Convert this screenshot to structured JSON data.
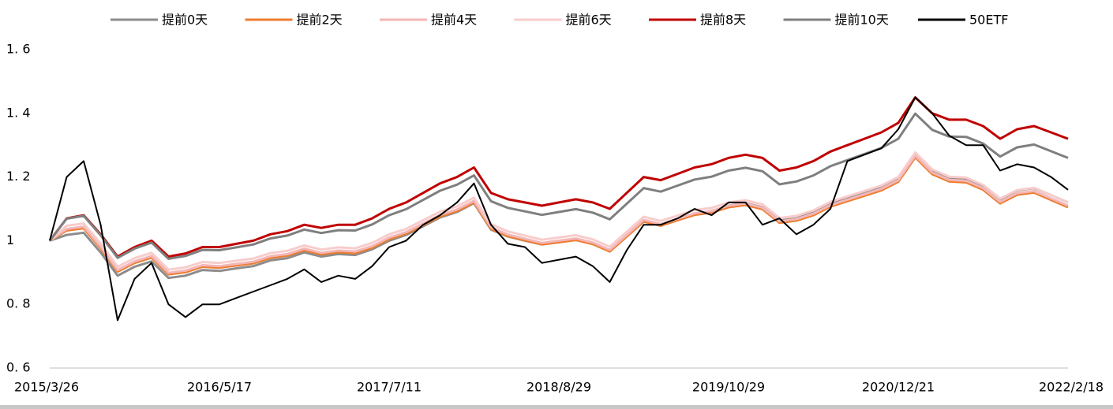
{
  "chart_data": {
    "type": "line",
    "categories": [
      "2015/3/26",
      null,
      null,
      null,
      null,
      null,
      null,
      null,
      null,
      null,
      "2016/5/17",
      null,
      null,
      null,
      null,
      null,
      null,
      null,
      null,
      null,
      "2017/7/11",
      null,
      null,
      null,
      null,
      null,
      null,
      null,
      null,
      null,
      "2018/8/29",
      null,
      null,
      null,
      null,
      null,
      null,
      null,
      null,
      null,
      "2019/10/29",
      null,
      null,
      null,
      null,
      null,
      null,
      null,
      null,
      null,
      "2020/12/21",
      null,
      null,
      null,
      null,
      null,
      null,
      null,
      null,
      null,
      "2022/2/18"
    ],
    "ylim": [
      0.6,
      1.6
    ],
    "yticks": [
      {
        "value": 0.6,
        "label": "0. 6"
      },
      {
        "value": 0.8,
        "label": "0. 8"
      },
      1,
      {
        "value": 1.2,
        "label": "1. 2"
      },
      {
        "value": 1.4,
        "label": "1. 4"
      },
      {
        "value": 1.6,
        "label": "1. 6"
      }
    ],
    "series": [
      {
        "name": "提前0天",
        "color": "#8c8c8c",
        "values": [
          1.0,
          1.018,
          1.025,
          0.963,
          0.89,
          0.918,
          0.935,
          0.883,
          0.89,
          0.908,
          0.905,
          0.913,
          0.92,
          0.938,
          0.945,
          0.963,
          0.95,
          0.958,
          0.955,
          0.973,
          1.0,
          1.018,
          1.045,
          1.073,
          1.09,
          1.118,
          1.035,
          1.013,
          1.0,
          0.988,
          0.995,
          1.003,
          0.99,
          0.968,
          1.015,
          1.063,
          1.05,
          1.068,
          1.085,
          1.093,
          1.11,
          1.118,
          1.105,
          1.063,
          1.07,
          1.088,
          1.115,
          1.133,
          1.15,
          1.168,
          1.195,
          1.273,
          1.22,
          1.198,
          1.195,
          1.173,
          1.13,
          1.158,
          1.165,
          1.143,
          1.12
        ]
      },
      {
        "name": "提前2天",
        "color": "#ed7d31",
        "values": [
          1.0,
          1.032,
          1.039,
          0.976,
          0.903,
          0.93,
          0.947,
          0.894,
          0.901,
          0.918,
          0.915,
          0.922,
          0.929,
          0.946,
          0.953,
          0.97,
          0.957,
          0.964,
          0.961,
          0.978,
          1.005,
          1.022,
          1.049,
          1.076,
          1.093,
          1.12,
          1.037,
          1.014,
          1.001,
          0.988,
          0.995,
          1.002,
          0.989,
          0.966,
          1.013,
          1.06,
          1.047,
          1.064,
          1.081,
          1.088,
          1.105,
          1.112,
          1.099,
          1.056,
          1.063,
          1.08,
          1.107,
          1.124,
          1.141,
          1.158,
          1.185,
          1.262,
          1.209,
          1.186,
          1.183,
          1.16,
          1.117,
          1.144,
          1.151,
          1.128,
          1.105
        ]
      },
      {
        "name": "提前4天",
        "color": "#f4b6b6",
        "values": [
          1.0,
          1.037,
          1.044,
          0.981,
          0.908,
          0.935,
          0.952,
          0.899,
          0.906,
          0.923,
          0.92,
          0.927,
          0.934,
          0.951,
          0.958,
          0.975,
          0.962,
          0.969,
          0.966,
          0.983,
          1.01,
          1.027,
          1.054,
          1.081,
          1.098,
          1.125,
          1.042,
          1.019,
          1.006,
          0.993,
          1.0,
          1.007,
          0.994,
          0.971,
          1.018,
          1.065,
          1.052,
          1.069,
          1.086,
          1.093,
          1.11,
          1.117,
          1.104,
          1.061,
          1.068,
          1.085,
          1.112,
          1.129,
          1.146,
          1.163,
          1.19,
          1.267,
          1.214,
          1.191,
          1.188,
          1.165,
          1.122,
          1.149,
          1.156,
          1.133,
          1.11
        ]
      },
      {
        "name": "提前6天",
        "color": "#f8cccc",
        "values": [
          1.0,
          1.047,
          1.054,
          0.991,
          0.918,
          0.945,
          0.962,
          0.909,
          0.916,
          0.933,
          0.93,
          0.937,
          0.944,
          0.961,
          0.968,
          0.985,
          0.972,
          0.979,
          0.976,
          0.993,
          1.02,
          1.037,
          1.064,
          1.091,
          1.108,
          1.135,
          1.052,
          1.029,
          1.016,
          1.003,
          1.01,
          1.017,
          1.004,
          0.981,
          1.028,
          1.075,
          1.062,
          1.079,
          1.096,
          1.103,
          1.12,
          1.127,
          1.114,
          1.071,
          1.078,
          1.095,
          1.122,
          1.139,
          1.156,
          1.173,
          1.2,
          1.277,
          1.224,
          1.201,
          1.198,
          1.175,
          1.132,
          1.159,
          1.166,
          1.143,
          1.12
        ]
      },
      {
        "name": "提前8天",
        "color": "#c00000",
        "values": [
          1.0,
          1.07,
          1.08,
          1.02,
          0.95,
          0.98,
          1.0,
          0.95,
          0.96,
          0.98,
          0.98,
          0.99,
          1.0,
          1.02,
          1.03,
          1.05,
          1.04,
          1.05,
          1.05,
          1.07,
          1.1,
          1.12,
          1.15,
          1.18,
          1.2,
          1.23,
          1.15,
          1.13,
          1.12,
          1.11,
          1.12,
          1.13,
          1.12,
          1.1,
          1.15,
          1.2,
          1.19,
          1.21,
          1.23,
          1.24,
          1.26,
          1.27,
          1.26,
          1.22,
          1.23,
          1.25,
          1.28,
          1.3,
          1.32,
          1.34,
          1.37,
          1.45,
          1.4,
          1.38,
          1.38,
          1.36,
          1.32,
          1.35,
          1.36,
          1.34,
          1.32
        ]
      },
      {
        "name": "提前10天",
        "color": "#7f7f7f",
        "values": [
          1.0,
          1.069,
          1.078,
          1.017,
          0.946,
          0.975,
          0.994,
          0.943,
          0.952,
          0.971,
          0.97,
          0.979,
          0.988,
          1.007,
          1.016,
          1.035,
          1.024,
          1.033,
          1.032,
          1.051,
          1.08,
          1.099,
          1.128,
          1.157,
          1.176,
          1.205,
          1.124,
          1.103,
          1.092,
          1.081,
          1.09,
          1.099,
          1.088,
          1.067,
          1.116,
          1.165,
          1.154,
          1.173,
          1.192,
          1.201,
          1.22,
          1.229,
          1.218,
          1.177,
          1.186,
          1.205,
          1.234,
          1.253,
          1.272,
          1.291,
          1.32,
          1.399,
          1.348,
          1.327,
          1.326,
          1.305,
          1.264,
          1.293,
          1.302,
          1.281,
          1.26
        ]
      },
      {
        "name": "50ETF",
        "color": "#000000",
        "values": [
          1.0,
          1.2,
          1.25,
          1.05,
          0.75,
          0.88,
          0.93,
          0.8,
          0.76,
          0.8,
          0.8,
          0.82,
          0.84,
          0.86,
          0.88,
          0.91,
          0.87,
          0.89,
          0.88,
          0.92,
          0.98,
          1.0,
          1.05,
          1.08,
          1.12,
          1.18,
          1.05,
          0.99,
          0.98,
          0.93,
          0.94,
          0.95,
          0.92,
          0.87,
          0.97,
          1.05,
          1.05,
          1.07,
          1.1,
          1.08,
          1.12,
          1.12,
          1.05,
          1.07,
          1.02,
          1.05,
          1.1,
          1.25,
          1.27,
          1.29,
          1.35,
          1.45,
          1.4,
          1.33,
          1.3,
          1.3,
          1.22,
          1.24,
          1.23,
          1.2,
          1.16
        ]
      }
    ]
  }
}
